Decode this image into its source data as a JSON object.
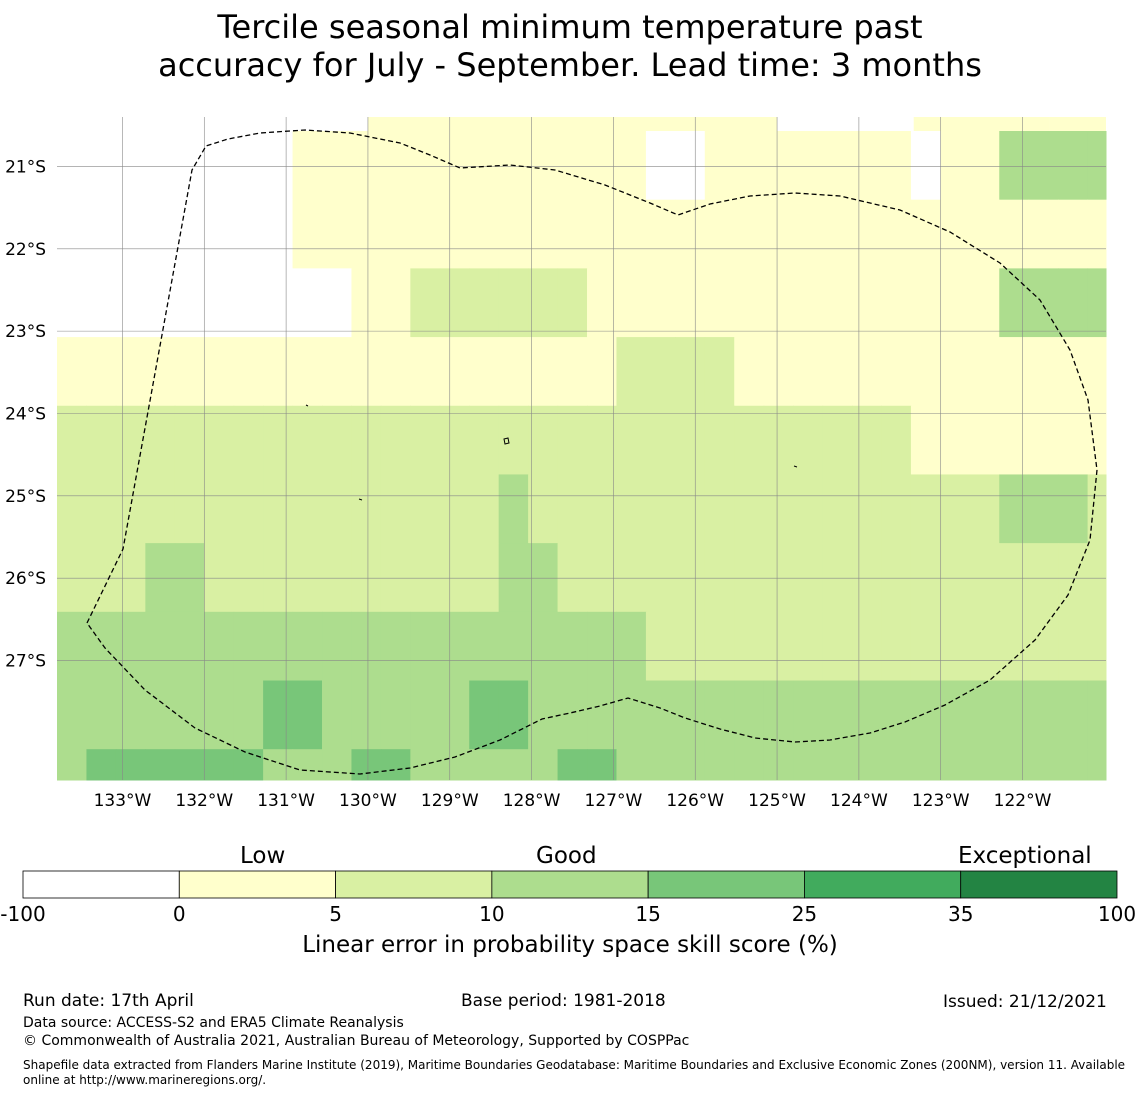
{
  "title": {
    "line1": "Tercile seasonal minimum temperature past",
    "line2": "accuracy for July - September. Lead time: 3 months"
  },
  "map": {
    "lon_range": [
      -133.8,
      -120.98
    ],
    "lat_range": [
      -28.45,
      -20.4
    ],
    "lon_ticks": [
      {
        "value": -133,
        "label": "133°W"
      },
      {
        "value": -132,
        "label": "132°W"
      },
      {
        "value": -131,
        "label": "131°W"
      },
      {
        "value": -130,
        "label": "130°W"
      },
      {
        "value": -129,
        "label": "129°W"
      },
      {
        "value": -128,
        "label": "128°W"
      },
      {
        "value": -127,
        "label": "127°W"
      },
      {
        "value": -126,
        "label": "126°W"
      },
      {
        "value": -125,
        "label": "125°W"
      },
      {
        "value": -124,
        "label": "124°W"
      },
      {
        "value": -123,
        "label": "123°W"
      },
      {
        "value": -122,
        "label": "122°W"
      }
    ],
    "lat_ticks": [
      {
        "value": -21,
        "label": "21°S"
      },
      {
        "value": -22,
        "label": "22°S"
      },
      {
        "value": -23,
        "label": "23°S"
      },
      {
        "value": -24,
        "label": "24°S"
      },
      {
        "value": -25,
        "label": "25°S"
      },
      {
        "value": -26,
        "label": "26°S"
      },
      {
        "value": -27,
        "label": "27°S"
      }
    ],
    "grid": true,
    "grid_color": "#888888",
    "grid_top_lat": -20.57,
    "grid_lon_start": -133.8,
    "grid_lat_start": -20.57,
    "cell_lon": 0.833,
    "cell_lat": 0.556,
    "cell_categories_note": "0:<0 1:0-5 2:5-10 3:10-15 4:15-25 5:25-35 6:35-100",
    "cells": [
      [
        0,
        0,
        0,
        0,
        0,
        0,
        0,
        0,
        1,
        1,
        1,
        1,
        1,
        1,
        1,
        1,
        1,
        1,
        1,
        1,
        0,
        0,
        1,
        1,
        1,
        1,
        1,
        1,
        1,
        0,
        1,
        1,
        3,
        3,
        3,
        3
      ],
      [
        0,
        0,
        0,
        0,
        0,
        0,
        0,
        0,
        1,
        1,
        1,
        1,
        1,
        1,
        1,
        1,
        1,
        1,
        1,
        1,
        1,
        1,
        1,
        1,
        1,
        1,
        1,
        1,
        1,
        1,
        1,
        1,
        1,
        1,
        1,
        1
      ],
      [
        0,
        0,
        0,
        0,
        0,
        0,
        0,
        0,
        0,
        0,
        1,
        1,
        2,
        2,
        2,
        2,
        2,
        2,
        1,
        1,
        1,
        1,
        1,
        1,
        1,
        1,
        1,
        1,
        1,
        1,
        1,
        1,
        3,
        3,
        3,
        3
      ],
      [
        1,
        1,
        1,
        1,
        1,
        1,
        1,
        1,
        1,
        1,
        1,
        1,
        1,
        1,
        1,
        1,
        1,
        1,
        1,
        2,
        2,
        2,
        2,
        1,
        1,
        1,
        1,
        1,
        1,
        1,
        1,
        1,
        1,
        1,
        1,
        1
      ],
      [
        2,
        2,
        2,
        2,
        2,
        2,
        2,
        2,
        2,
        2,
        2,
        2,
        2,
        2,
        2,
        2,
        2,
        2,
        2,
        2,
        2,
        2,
        2,
        2,
        2,
        2,
        2,
        2,
        2,
        1,
        1,
        1,
        1,
        1,
        1,
        1
      ],
      [
        2,
        2,
        2,
        2,
        2,
        2,
        2,
        2,
        2,
        2,
        2,
        2,
        2,
        2,
        2,
        3,
        2,
        2,
        2,
        2,
        2,
        2,
        2,
        2,
        2,
        2,
        2,
        2,
        2,
        2,
        2,
        2,
        3,
        3,
        3,
        2
      ],
      [
        2,
        2,
        2,
        3,
        3,
        2,
        2,
        2,
        2,
        2,
        2,
        2,
        2,
        2,
        2,
        3,
        3,
        2,
        2,
        2,
        2,
        2,
        2,
        2,
        2,
        2,
        2,
        2,
        2,
        2,
        2,
        2,
        2,
        2,
        2,
        2
      ],
      [
        3,
        3,
        3,
        3,
        3,
        3,
        3,
        3,
        3,
        3,
        3,
        3,
        3,
        3,
        3,
        3,
        3,
        3,
        3,
        3,
        2,
        2,
        2,
        2,
        2,
        2,
        2,
        2,
        2,
        2,
        2,
        2,
        2,
        2,
        2,
        2
      ],
      [
        3,
        3,
        3,
        3,
        3,
        3,
        3,
        4,
        4,
        3,
        3,
        3,
        3,
        3,
        4,
        4,
        3,
        3,
        3,
        3,
        3,
        3,
        3,
        3,
        3,
        3,
        3,
        3,
        3,
        3,
        3,
        3,
        3,
        3,
        3,
        3
      ],
      [
        3,
        4,
        4,
        4,
        4,
        4,
        4,
        3,
        3,
        3,
        4,
        4,
        3,
        3,
        3,
        3,
        3,
        4,
        4,
        3,
        3,
        3,
        3,
        3,
        3,
        3,
        3,
        3,
        3,
        3,
        3,
        3,
        3,
        3,
        3,
        3
      ]
    ],
    "colors": [
      "#ffffff",
      "#ffffcc",
      "#d9f0a3",
      "#addd8e",
      "#78c679",
      "#41ab5d",
      "#238443"
    ]
  },
  "colorbar": {
    "category_labels": [
      "Low",
      "Good",
      "Exceptional"
    ],
    "boundaries": [
      "-100",
      "0",
      "5",
      "10",
      "15",
      "25",
      "35",
      "100"
    ],
    "colors": [
      "#ffffff",
      "#ffffcc",
      "#d9f0a3",
      "#addd8e",
      "#78c679",
      "#41ab5d",
      "#238443"
    ],
    "title": "Linear error in probability space skill score (%)"
  },
  "footer": {
    "run_date": "Run date: 17th April",
    "base_period": "Base period: 1981-2018",
    "issued": "Issued: 21/12/2021",
    "data_source": "Data source: ACCESS-S2 and ERA5 Climate Reanalysis",
    "copyright": "© Commonwealth of Australia 2021, Australian Bureau of Meteorology, Supported by COSPPac",
    "shapefile": "Shapefile data extracted from Flanders Marine Institute (2019), Maritime Boundaries Geodatabase: Maritime Boundaries and Exclusive Economic Zones (200NM), version 11. Available online at http://www.marineregions.org/."
  }
}
